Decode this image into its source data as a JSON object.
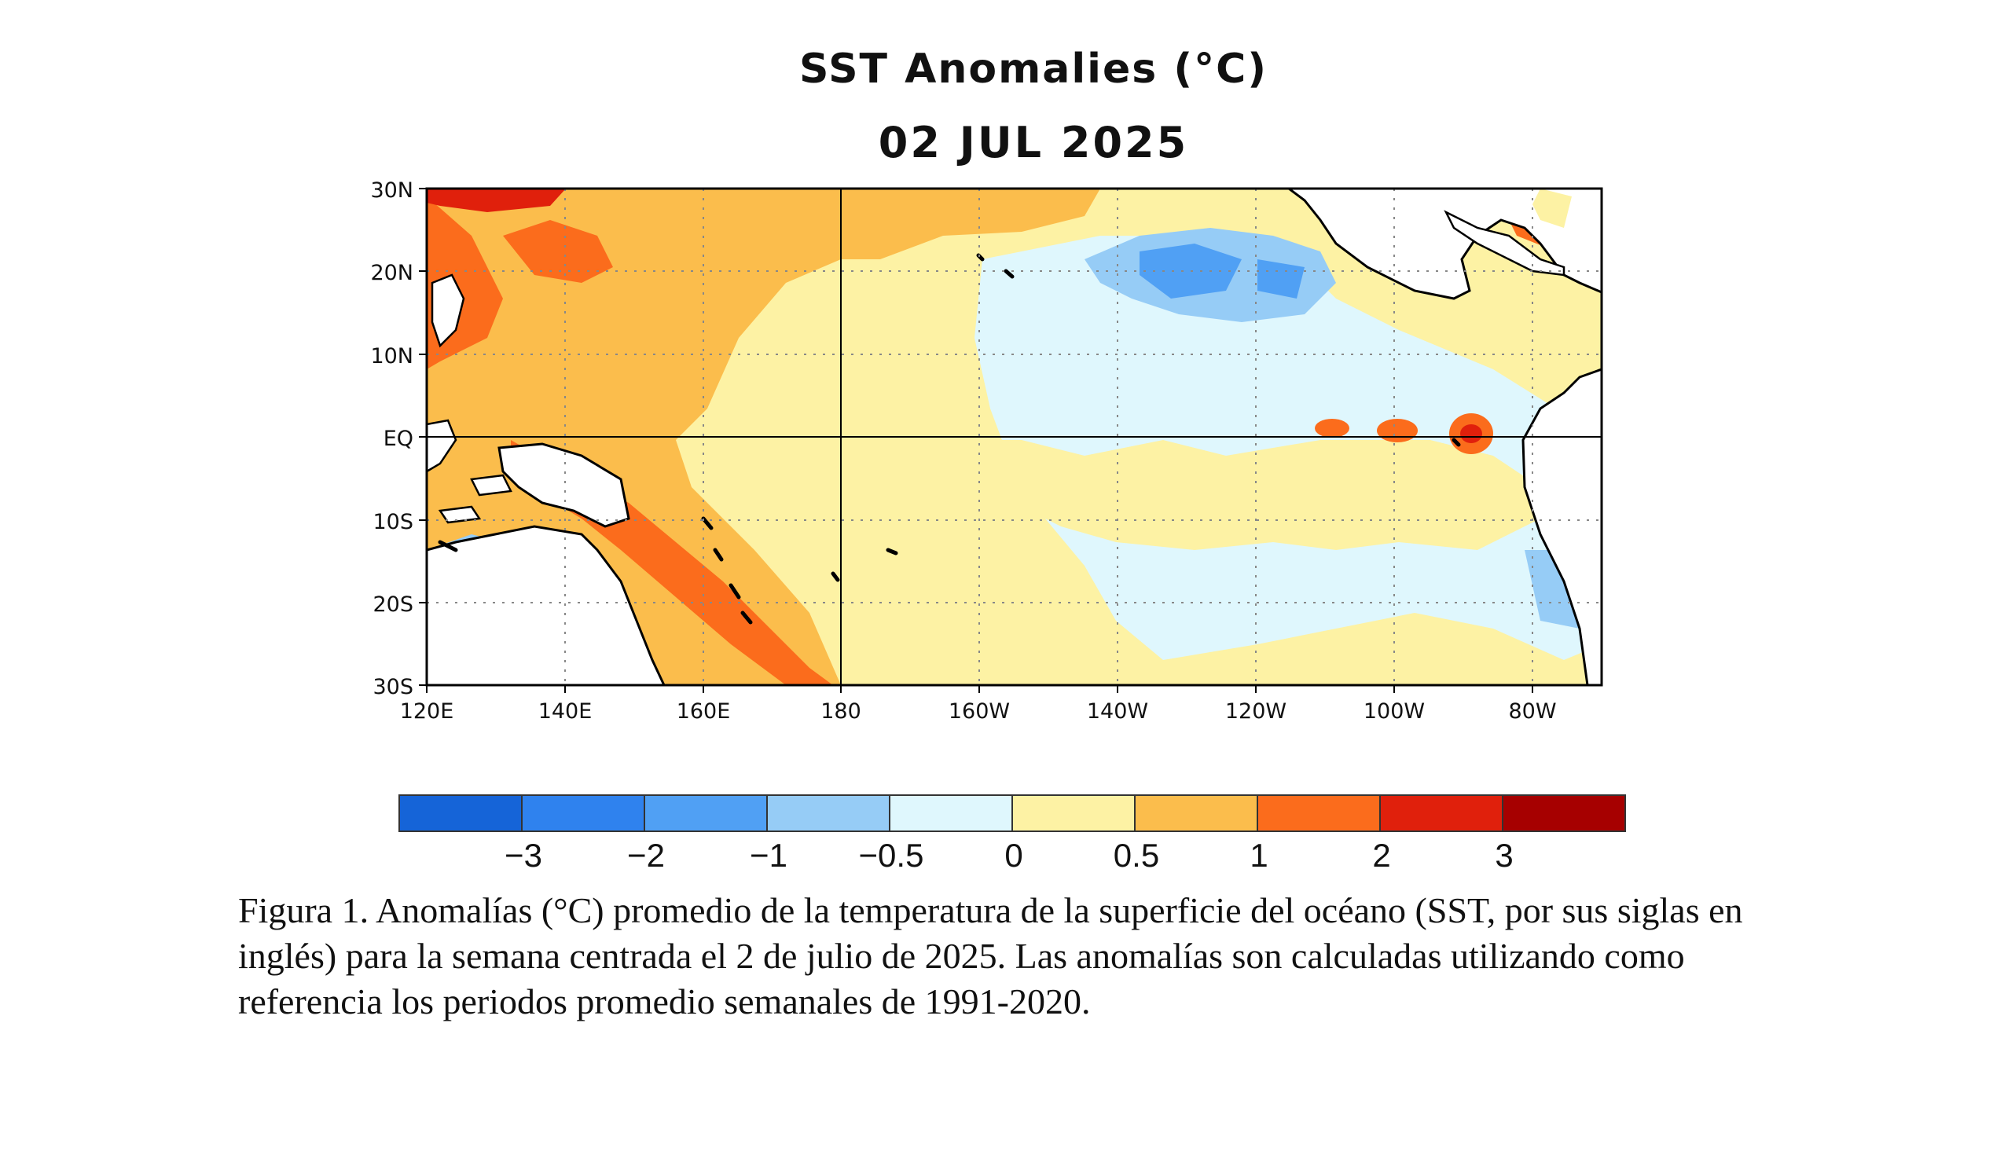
{
  "map": {
    "title": "SST Anomalies (°C)",
    "date": "02 JUL 2025",
    "lat_labels": [
      "30N",
      "20N",
      "10N",
      "EQ",
      "10S",
      "20S",
      "30S"
    ],
    "lon_labels": [
      "120E",
      "140E",
      "160E",
      "180",
      "160W",
      "140W",
      "120W",
      "100W",
      "80W"
    ],
    "extent": {
      "lon_min": 120,
      "lon_max": 290,
      "lat_min": -30,
      "lat_max": 30
    },
    "land_color": "#ffffff",
    "coast_color": "#000000"
  },
  "colorbar": {
    "colors": [
      "#1564d8",
      "#2f82ee",
      "#50a0f4",
      "#96ccf6",
      "#dff7fd",
      "#fdf2a4",
      "#fbbd4c",
      "#fb6c1c",
      "#e0200c",
      "#a60000"
    ],
    "tick_labels": [
      "−3",
      "−2",
      "−1",
      "−0.5",
      "0",
      "0.5",
      "1",
      "2",
      "3"
    ]
  },
  "caption": "Figura 1. Anomalías (°C) promedio de la temperatura de la superficie del océano (SST, por sus siglas en inglés) para la semana centrada el 2 de julio de 2025. Las anomalías son calculadas utilizando como referencia los periodos promedio semanales de 1991-2020."
}
